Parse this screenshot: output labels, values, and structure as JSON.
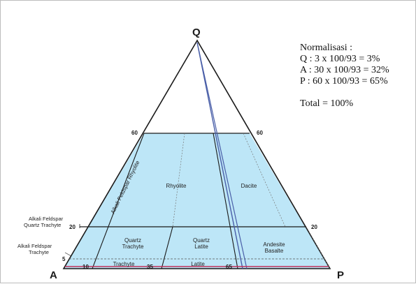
{
  "apex": {
    "q": "Q",
    "a": "A",
    "p": "P"
  },
  "ticks": {
    "left_60": "60",
    "right_60": "60",
    "left_20": "20",
    "right_20": "20",
    "left_5": "5",
    "base_10": "10",
    "base_35": "35",
    "base_65": "65"
  },
  "fields": {
    "alkali_feldspar_rhyolite": "Alkali Feldspar Rhyolite",
    "rhyolite": "Rhyolite",
    "dacite": "Dacite",
    "quartz_trachyte": [
      "Quartz",
      "Trachyte"
    ],
    "quartz_latite": [
      "Quartz",
      "Latite"
    ],
    "andesite_basalte": [
      "Andesite",
      "Basalte"
    ],
    "trachyte": "Trachyte",
    "latite": "Latite",
    "alkali_feldspar_quartz_trachyte": [
      "Alkali Feldspar",
      "Quartz Trachyte"
    ],
    "alkali_feldspar_trachyte": [
      "Alkali Feldspar",
      "Trachyte"
    ]
  },
  "normalization": {
    "title": "Normalisasi :",
    "lines": [
      "Q : 3 x 100/93 = 3%",
      "A : 30 x 100/93 = 32%",
      "P  : 60 x 100/93 = 65%"
    ],
    "total": "Total = 100%"
  },
  "colors": {
    "field_fill": "#bde6f7",
    "outline": "#1a1a1a",
    "plot_line_blue": "#4a5fa8",
    "plot_line_red": "#c0305a"
  }
}
